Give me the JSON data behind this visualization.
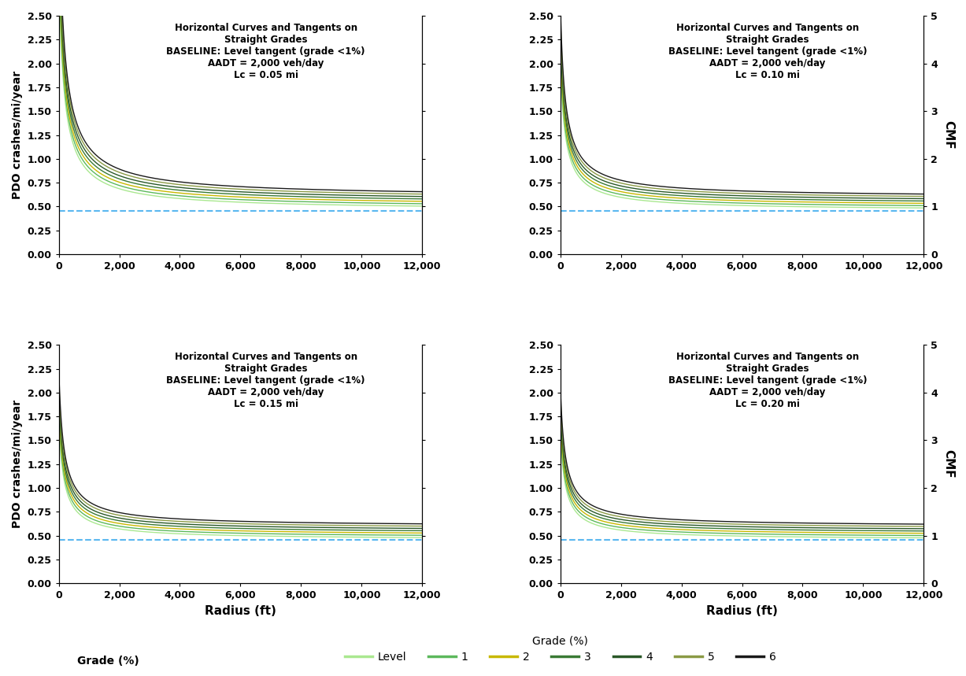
{
  "curve_lengths": [
    0.05,
    0.1,
    0.15,
    0.2
  ],
  "grades": [
    "Level",
    "1",
    "2",
    "3",
    "4",
    "5",
    "6"
  ],
  "grade_colors": [
    "#aae890",
    "#5cb85c",
    "#c8b800",
    "#3a7a35",
    "#2a5828",
    "#8a9a45",
    "#1a1a1a"
  ],
  "grade_multipliers": [
    1.0,
    1.05,
    1.1,
    1.15,
    1.2,
    1.25,
    1.3
  ],
  "AADT": 2000,
  "baseline_PDO": 0.456,
  "x_max": 12000,
  "y_left_max": 2.5,
  "y_right_max": 5.0,
  "y_left_ticks": [
    0.0,
    0.25,
    0.5,
    0.75,
    1.0,
    1.25,
    1.5,
    1.75,
    2.0,
    2.25,
    2.5
  ],
  "y_right_ticks": [
    0,
    1,
    2,
    3,
    4,
    5
  ],
  "x_ticks": [
    0,
    2000,
    4000,
    6000,
    8000,
    10000,
    12000
  ],
  "x_tick_labels": [
    "0",
    "2,000",
    "4,000",
    "6,000",
    "8,000",
    "10,000",
    "12,000"
  ],
  "title_line1": "Horizontal Curves and Tangents on",
  "title_line2": "Straight Grades",
  "baseline_label": "BASELINE: Level tangent (grade <1%)",
  "aadt_label": "AADT = 2,000 veh/day",
  "lc_labels": [
    "Lc = 0.05 mi",
    "Lc = 0.10 mi",
    "Lc = 0.15 mi",
    "Lc = 0.20 mi"
  ],
  "lc_starts": [
    2.25,
    1.55,
    1.35,
    1.25
  ],
  "xlabel": "Radius (ft)",
  "ylabel_left": "PDO crashes/mi/year",
  "ylabel_right": "CMF",
  "baseline_color": "#5BB8F0",
  "figsize": [
    12.27,
    8.59
  ],
  "dpi": 100,
  "model_alpha": 0.5,
  "model_beta": 150,
  "model_power": 0.7
}
